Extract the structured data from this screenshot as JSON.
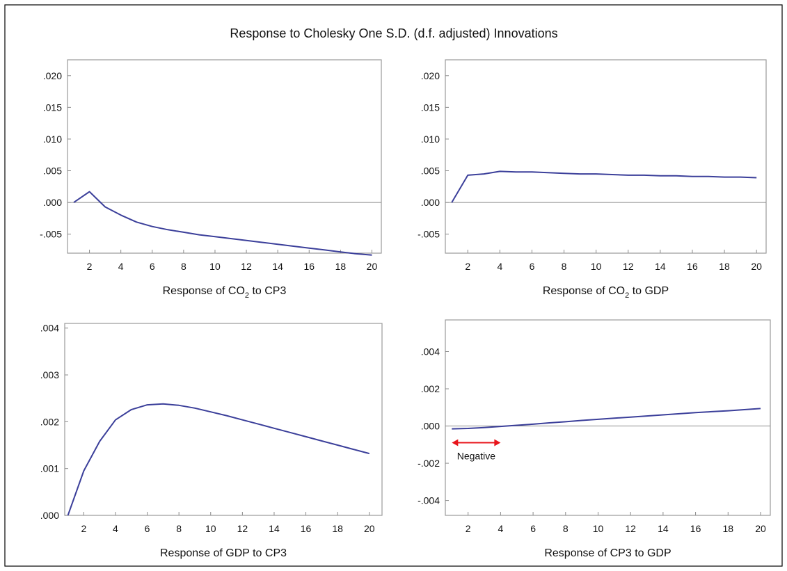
{
  "figure_title": "Response to Cholesky One S.D. (d.f. adjusted) Innovations",
  "line_color": "#3b3f9a",
  "annotation_color": "#e8141b",
  "chart_data": [
    {
      "type": "line",
      "title": "Response of CO",
      "title_sub": "2",
      "title_tail": " to CP3",
      "x": [
        1,
        2,
        3,
        4,
        5,
        6,
        7,
        8,
        9,
        10,
        11,
        12,
        13,
        14,
        15,
        16,
        17,
        18,
        19,
        20
      ],
      "y": [
        0.0,
        0.0017,
        -0.0007,
        -0.002,
        -0.0031,
        -0.0038,
        -0.0043,
        -0.0047,
        -0.0051,
        -0.0054,
        -0.0057,
        -0.006,
        -0.0063,
        -0.0066,
        -0.0069,
        -0.0072,
        -0.0075,
        -0.0078,
        -0.0081,
        -0.0083
      ],
      "xlim": [
        0.6,
        20.6
      ],
      "ylim": [
        -0.008,
        0.0225
      ],
      "xticks": [
        2,
        4,
        6,
        8,
        10,
        12,
        14,
        16,
        18,
        20
      ],
      "yticks": [
        -0.005,
        0.0,
        0.005,
        0.01,
        0.015,
        0.02
      ],
      "ytick_labels": [
        "-.005",
        ".000",
        ".005",
        ".010",
        ".015",
        ".020"
      ],
      "zero_line": true
    },
    {
      "type": "line",
      "title": "Response of CO",
      "title_sub": "2",
      "title_tail": " to GDP",
      "x": [
        1,
        2,
        3,
        4,
        5,
        6,
        7,
        8,
        9,
        10,
        11,
        12,
        13,
        14,
        15,
        16,
        17,
        18,
        19,
        20
      ],
      "y": [
        0.0,
        0.0043,
        0.0045,
        0.0049,
        0.0048,
        0.0048,
        0.0047,
        0.0046,
        0.0045,
        0.0045,
        0.0044,
        0.0043,
        0.0043,
        0.0042,
        0.0042,
        0.0041,
        0.0041,
        0.004,
        0.004,
        0.0039
      ],
      "xlim": [
        0.6,
        20.6
      ],
      "ylim": [
        -0.008,
        0.0225
      ],
      "xticks": [
        2,
        4,
        6,
        8,
        10,
        12,
        14,
        16,
        18,
        20
      ],
      "yticks": [
        -0.005,
        0.0,
        0.005,
        0.01,
        0.015,
        0.02
      ],
      "ytick_labels": [
        "-.005",
        ".000",
        ".005",
        ".010",
        ".015",
        ".020"
      ],
      "zero_line": true
    },
    {
      "type": "line",
      "title": "Response of GDP to CP3",
      "title_sub": "",
      "title_tail": "",
      "x": [
        1,
        2,
        3,
        4,
        5,
        6,
        7,
        8,
        9,
        10,
        11,
        12,
        13,
        14,
        15,
        16,
        17,
        18,
        19,
        20
      ],
      "y": [
        0.0,
        0.00095,
        0.00158,
        0.00204,
        0.00226,
        0.00236,
        0.00238,
        0.00235,
        0.00229,
        0.00221,
        0.00213,
        0.00204,
        0.00195,
        0.00186,
        0.00177,
        0.00168,
        0.00159,
        0.0015,
        0.00141,
        0.00132
      ],
      "xlim": [
        0.8,
        20.8
      ],
      "ylim": [
        0.0,
        0.0041
      ],
      "xticks": [
        2,
        4,
        6,
        8,
        10,
        12,
        14,
        16,
        18,
        20
      ],
      "yticks": [
        0.0,
        0.001,
        0.002,
        0.003,
        0.004
      ],
      "ytick_labels": [
        ".000",
        ".001",
        ".002",
        ".003",
        ".004"
      ],
      "zero_line": false
    },
    {
      "type": "line",
      "title": "Response of CP3 to GDP",
      "title_sub": "",
      "title_tail": "",
      "x": [
        1,
        2,
        3,
        4,
        5,
        6,
        7,
        8,
        9,
        10,
        11,
        12,
        13,
        14,
        15,
        16,
        17,
        18,
        19,
        20
      ],
      "y": [
        -0.00015,
        -0.00013,
        -8e-05,
        -2e-05,
        4e-05,
        0.0001,
        0.00017,
        0.00023,
        0.0003,
        0.00036,
        0.00042,
        0.00048,
        0.00054,
        0.0006,
        0.00066,
        0.00072,
        0.00077,
        0.00082,
        0.00088,
        0.00094
      ],
      "xlim": [
        0.6,
        20.6
      ],
      "ylim": [
        -0.0048,
        0.0057
      ],
      "xticks": [
        2,
        4,
        6,
        8,
        10,
        12,
        14,
        16,
        18,
        20
      ],
      "yticks": [
        -0.004,
        -0.002,
        0.0,
        0.002,
        0.004
      ],
      "ytick_labels": [
        "-.004",
        "-.002",
        ".000",
        ".002",
        ".004"
      ],
      "zero_line": true,
      "annotation": {
        "text": "Negative",
        "x_from": 1,
        "x_to": 4
      }
    }
  ]
}
